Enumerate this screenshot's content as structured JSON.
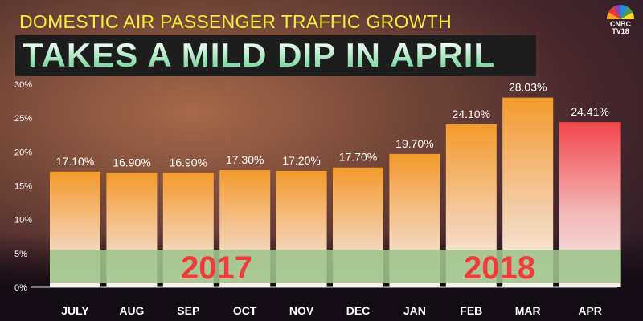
{
  "header": {
    "subtitle": "DOMESTIC AIR PASSENGER TRAFFIC GROWTH",
    "title": "TAKES A MILD DIP IN APRIL",
    "logo_line1": "CNBC",
    "logo_line2": "TV18"
  },
  "colors": {
    "bar": "#f39a2a",
    "highlight": "#f2474a",
    "band": "#9fc48a",
    "year": "#f23b3b"
  },
  "chart_data": {
    "type": "bar",
    "title": "Domestic Air Passenger Traffic Growth",
    "categories": [
      "JULY",
      "AUG",
      "SEP",
      "OCT",
      "NOV",
      "DEC",
      "JAN",
      "FEB",
      "MAR",
      "APR"
    ],
    "values": [
      17.1,
      16.9,
      16.9,
      17.3,
      17.2,
      17.7,
      19.7,
      24.1,
      28.03,
      24.41
    ],
    "labels": [
      "17.10%",
      "16.90%",
      "16.90%",
      "17.30%",
      "17.20%",
      "17.70%",
      "19.70%",
      "24.10%",
      "28.03%",
      "24.41%"
    ],
    "highlight_index": 9,
    "yticks": [
      "0%",
      "5%",
      "10%",
      "15%",
      "20%",
      "25%",
      "30%"
    ],
    "ylim": [
      0,
      30
    ],
    "annotations": [
      {
        "text": "2017",
        "span": [
          0,
          5
        ]
      },
      {
        "text": "2018",
        "span": [
          6,
          9
        ]
      }
    ]
  }
}
